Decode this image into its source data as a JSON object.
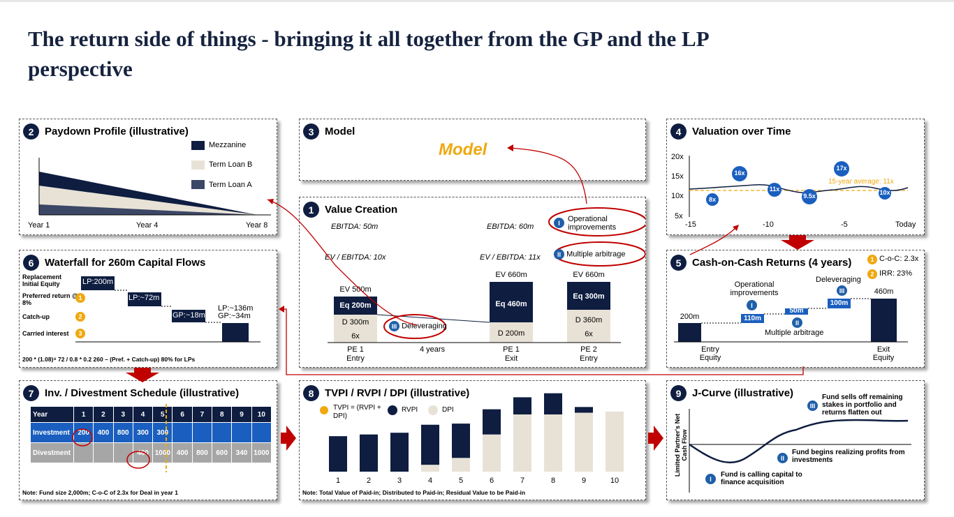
{
  "title": "The return side of things - bringing it all together from the GP and the LP perspective",
  "p1": {
    "num": "1",
    "title": "Value Creation",
    "ebitda_entry": "EBITDA: 50m",
    "ebitda_exit": "EBITDA: 60m",
    "ev_ebitda_entry": "EV / EBITDA: 10x",
    "ev_ebitda_exit": "EV / EBITDA: 11x",
    "op_impr": "Operational improvements",
    "mult_arb": "Multiple arbitrage",
    "delev": "Deleveraging",
    "rom_i": "I",
    "rom_ii": "II",
    "rom_iii": "III",
    "bars": [
      {
        "ev": "EV 500m",
        "eq": "Eq 200m",
        "d": "D 300m",
        "mult": "6x",
        "label1": "PE 1",
        "label2": "Entry"
      },
      {
        "ev": "EV 660m",
        "eq": "Eq 460m",
        "d": "D 200m",
        "mult": "",
        "label1": "PE 1",
        "label2": "Exit"
      },
      {
        "ev": "EV 660m",
        "eq": "Eq 300m",
        "d": "D 360m",
        "mult": "6x",
        "label1": "PE 2",
        "label2": "Entry"
      }
    ],
    "years_label": "4 years"
  },
  "p2": {
    "num": "2",
    "title": "Paydown Profile (illustrative)",
    "legend": [
      "Mezzanine",
      "Term Loan B",
      "Term Loan A"
    ],
    "x_labels": [
      "Year 1",
      "Year 4",
      "Year 8"
    ]
  },
  "p3": {
    "num": "3",
    "title": "Model",
    "model": "Model"
  },
  "p4": {
    "num": "4",
    "title": "Valuation over Time",
    "y_labels": [
      "20x",
      "15x",
      "10x",
      "5x"
    ],
    "x_labels": [
      "-15",
      "-10",
      "-5",
      "Today"
    ],
    "avg_label": "15-year  average:  11x",
    "points": [
      "8x",
      "16x",
      "11x",
      "9.5x",
      "17x",
      "10x"
    ]
  },
  "p5": {
    "num": "5",
    "title": "Cash-on-Cash Returns (4 years)",
    "coc": "C-o-C: 2.3x",
    "irr": "IRR: 23%",
    "op_impr": "Operational improvements",
    "delev": "Deleveraging",
    "mult_arb": "Multiple arbitrage",
    "bars": [
      "200m",
      "110m",
      "50m",
      "100m",
      "460m"
    ],
    "entry": "Entry Equity",
    "exit": "Exit Equity"
  },
  "p6": {
    "num": "6",
    "title": "Waterfall for 260m Capital Flows",
    "rows": [
      "Replacement Initial Equity",
      "Preferred return @ 8%",
      "Catch-up",
      "Carried interest"
    ],
    "boxes": [
      "LP:200m",
      "LP:~72m",
      "GP:~18m"
    ],
    "final": [
      "LP:~136m",
      "GP:~34m"
    ],
    "footnote": "200 * (1.08)⁴ 72 / 0.8 * 0.2 260 – (Pref. + Catch-up) 80% for LPs"
  },
  "p7": {
    "num": "7",
    "title": "Inv. / Divestment Schedule (illustrative)",
    "header": [
      "Year",
      "1",
      "2",
      "3",
      "4",
      "5",
      "6",
      "7",
      "8",
      "9",
      "10"
    ],
    "investment": [
      "Investment",
      "200",
      "400",
      "800",
      "300",
      "300",
      "",
      "",
      "",
      "",
      ""
    ],
    "divestment": [
      "Divestment",
      "",
      "",
      "",
      "460",
      "1000",
      "400",
      "800",
      "600",
      "340",
      "1000"
    ],
    "note": "Note:  Fund size 2,000m; C-o-C of 2.3x for Deal in year 1"
  },
  "p8": {
    "num": "8",
    "title": "TVPI / RVPI / DPI (illustrative)",
    "legend": [
      "TVPI = (RVPI + DPI)",
      "RVPI",
      "DPI"
    ],
    "note": "Note: Total Value of Paid-in; Distributed to Paid-in; Residual Value to be Paid-in"
  },
  "p9": {
    "num": "9",
    "title": "J-Curve (illustrative)",
    "ylabel": "Limited Partner's Net Cash Flow",
    "ann_i": "Fund is calling  capital to finance acquisition",
    "ann_ii": "Fund begins realizing  profits from investments",
    "ann_iii": "Fund sells off remaining stakes in portfolio and returns flatten out"
  },
  "colors": {
    "navy": "#0e1d40",
    "beige": "#e8e2d6",
    "slate": "#3c4766",
    "gold": "#f0a80f",
    "red": "#c00000",
    "blue": "#1a5fbf"
  },
  "chart_data": [
    {
      "type": "bar",
      "title": "TVPI / RVPI / DPI (illustrative)",
      "categories": [
        "1",
        "2",
        "3",
        "4",
        "5",
        "6",
        "7",
        "8",
        "9",
        "10"
      ],
      "series": [
        {
          "name": "DPI",
          "values": [
            0,
            0,
            0,
            0.12,
            0.24,
            0.65,
            1.0,
            1.0,
            1.03,
            1.05
          ]
        },
        {
          "name": "RVPI",
          "values": [
            0.62,
            0.65,
            0.68,
            0.7,
            0.6,
            0.44,
            0.3,
            0.37,
            0.1,
            0
          ]
        }
      ]
    },
    {
      "type": "line",
      "title": "Valuation over Time",
      "x": [
        -15,
        -13,
        -11,
        -9,
        -7,
        -5,
        -3,
        -1
      ],
      "values": [
        11.5,
        12.8,
        13.2,
        11.0,
        10.0,
        11.2,
        12.0,
        10.5
      ],
      "ylim": [
        5,
        20
      ],
      "avg": 11
    }
  ]
}
